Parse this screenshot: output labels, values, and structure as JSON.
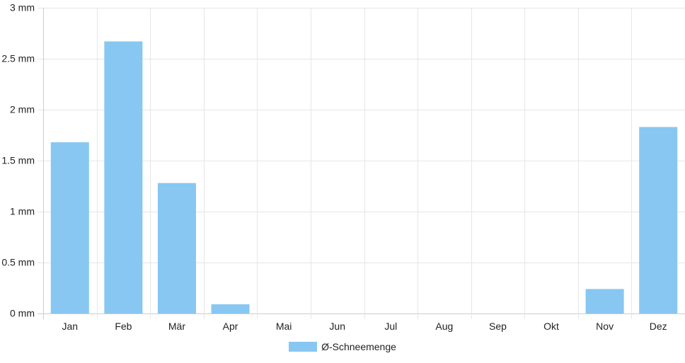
{
  "chart_data": {
    "type": "bar",
    "categories": [
      "Jan",
      "Feb",
      "Mär",
      "Apr",
      "Mai",
      "Jun",
      "Jul",
      "Aug",
      "Sep",
      "Okt",
      "Nov",
      "Dez"
    ],
    "series": [
      {
        "name": "Ø-Schneemenge",
        "values": [
          1.68,
          2.67,
          1.28,
          0.09,
          0,
          0,
          0,
          0,
          0,
          0,
          0.24,
          1.83
        ]
      }
    ],
    "ylim": [
      0,
      3
    ],
    "yticks": [
      0,
      0.5,
      1,
      1.5,
      2,
      2.5,
      3
    ],
    "ytick_labels": [
      "0 mm",
      "0.5 mm",
      "1 mm",
      "1.5 mm",
      "2 mm",
      "2.5 mm",
      "3 mm"
    ],
    "grid": true,
    "legend_position": "bottom-center",
    "colors": {
      "bar": "#87c7f2",
      "grid": "#e6e6e6",
      "axis": "#cccccc"
    }
  }
}
